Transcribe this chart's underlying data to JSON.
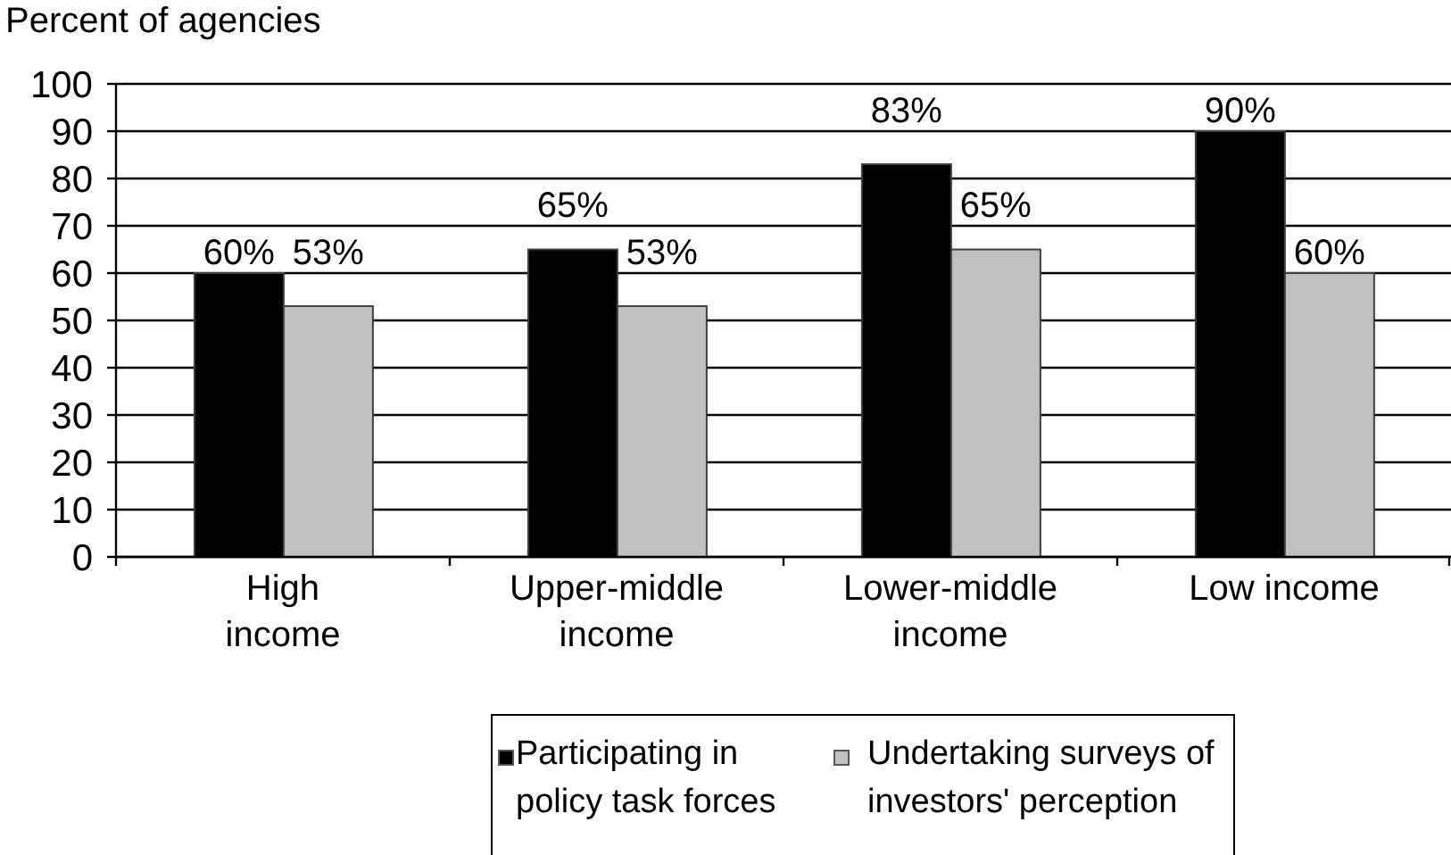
{
  "chart_data": {
    "type": "bar",
    "ylabel": "Percent of agencies",
    "categories": [
      "High income",
      "Upper-middle income",
      "Lower-middle income",
      "Low income"
    ],
    "series": [
      {
        "name": "Participating in policy task forces",
        "color": "#000000",
        "values": [
          60,
          65,
          83,
          90
        ],
        "value_labels": [
          "60%",
          "65%",
          "83%",
          "90%"
        ]
      },
      {
        "name": "Undertaking surveys of investors' perception",
        "color": "#c0c0c0",
        "values": [
          53,
          53,
          65,
          60
        ],
        "value_labels": [
          "53%",
          "53%",
          "65%",
          "60%"
        ]
      }
    ],
    "ylim": [
      0,
      100
    ],
    "yticks": [
      0,
      10,
      20,
      30,
      40,
      50,
      60,
      70,
      80,
      90,
      100
    ],
    "grid": "y",
    "legend": "bottom"
  }
}
